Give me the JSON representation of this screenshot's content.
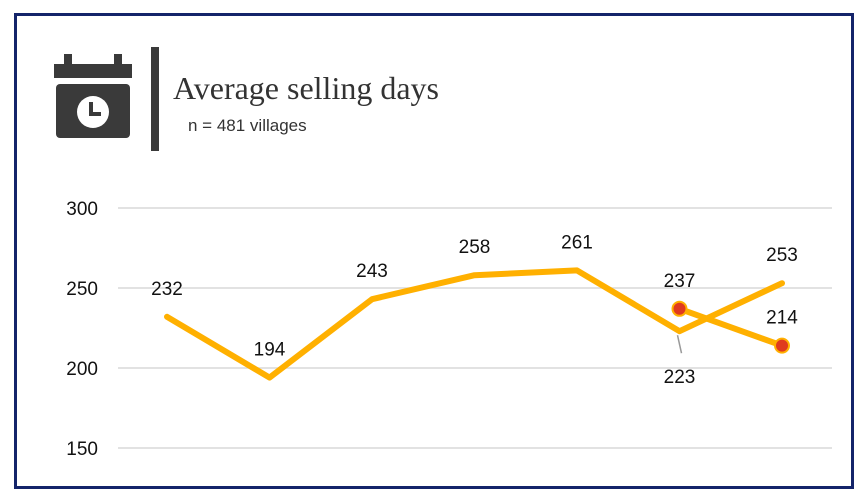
{
  "header": {
    "title": "Average selling days",
    "subtitle": "n = 481 villages",
    "icon": "calendar-clock-icon"
  },
  "colors": {
    "line": "#FFB000",
    "marker": "#E03A1E",
    "frame": "#14246A",
    "grid": "#D9D9D9"
  },
  "chart_data": {
    "type": "line",
    "title": "Average selling days",
    "subtitle": "n = 481 villages",
    "x": [
      1,
      2,
      3,
      4,
      5,
      6,
      7
    ],
    "ylim": [
      150,
      300
    ],
    "yticks": [
      "300",
      "250",
      "200",
      "150"
    ],
    "ytick_values": [
      300,
      250,
      200,
      150
    ],
    "grid": true,
    "series": [
      {
        "values": [
          232,
          194,
          243,
          258,
          261,
          223,
          253
        ],
        "labels": [
          "232",
          "194",
          "243",
          "258",
          "261",
          "223",
          "253"
        ],
        "markers": false
      },
      {
        "x": [
          6,
          7
        ],
        "values": [
          237,
          214
        ],
        "labels": [
          "237",
          "214"
        ],
        "markers": true
      }
    ]
  }
}
